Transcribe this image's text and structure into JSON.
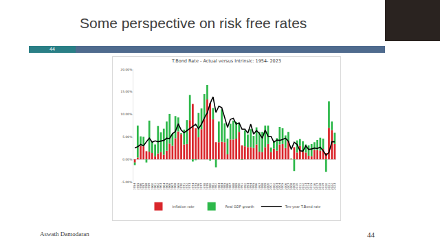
{
  "slide": {
    "title": "Some perspective on risk free rates",
    "number": "44",
    "footer": "Aswath Damodaran",
    "page": "44"
  },
  "chart_data": {
    "type": "bar",
    "title": "T.Bond Rate - Actual versus Intrinsic: 1954- 2023",
    "categories": [
      "1954",
      "1955",
      "1956",
      "1957",
      "1958",
      "1959",
      "1960",
      "1961",
      "1962",
      "1963",
      "1964",
      "1965",
      "1966",
      "1967",
      "1968",
      "1969",
      "1970",
      "1971",
      "1972",
      "1973",
      "1974",
      "1975",
      "1976",
      "1977",
      "1978",
      "1979",
      "1980",
      "1981",
      "1982",
      "1983",
      "1984",
      "1985",
      "1986",
      "1987",
      "1988",
      "1989",
      "1990",
      "1991",
      "1992",
      "1993",
      "1994",
      "1995",
      "1996",
      "1997",
      "1998",
      "1999",
      "2000",
      "2001",
      "2002",
      "2003",
      "2004",
      "2005",
      "2006",
      "2007",
      "2008",
      "2009",
      "2010",
      "2011",
      "2012",
      "2013",
      "2014",
      "2015",
      "2016",
      "2017",
      "2018",
      "2019",
      "2020",
      "2021",
      "2022",
      "2023"
    ],
    "series": [
      {
        "name": "Inflation rate",
        "color": "#d9262b",
        "values": [
          -0.7,
          0.4,
          3.0,
          2.9,
          1.8,
          1.7,
          1.4,
          0.7,
          1.3,
          1.6,
          1.0,
          1.9,
          3.5,
          3.0,
          4.7,
          6.2,
          5.6,
          3.3,
          3.4,
          8.7,
          12.3,
          6.9,
          4.9,
          6.7,
          9.0,
          13.3,
          12.5,
          8.9,
          3.8,
          3.8,
          3.9,
          3.8,
          1.1,
          4.4,
          4.4,
          4.6,
          6.1,
          3.1,
          2.9,
          2.7,
          2.7,
          2.5,
          3.3,
          1.7,
          1.6,
          2.7,
          3.4,
          1.6,
          2.4,
          1.9,
          3.3,
          3.4,
          2.5,
          4.1,
          0.1,
          2.7,
          1.5,
          3.0,
          1.7,
          1.5,
          0.8,
          0.7,
          2.1,
          2.1,
          1.9,
          2.3,
          1.4,
          7.0,
          6.5,
          3.4
        ]
      },
      {
        "name": "Real GDP growth",
        "color": "#2db84a",
        "values": [
          -0.6,
          7.1,
          2.1,
          2.1,
          -0.7,
          6.9,
          2.6,
          2.6,
          6.1,
          4.4,
          5.8,
          6.5,
          6.6,
          2.7,
          4.9,
          3.1,
          0.2,
          3.3,
          5.3,
          5.6,
          -0.5,
          -0.2,
          5.4,
          4.6,
          5.5,
          3.2,
          -0.3,
          2.5,
          -1.8,
          4.6,
          7.2,
          4.2,
          3.5,
          3.5,
          4.2,
          3.7,
          1.9,
          -0.1,
          3.5,
          2.8,
          4.0,
          2.7,
          3.8,
          4.4,
          4.5,
          4.8,
          4.1,
          1.0,
          1.7,
          2.8,
          3.9,
          3.5,
          2.8,
          2.0,
          0.1,
          -2.6,
          2.7,
          1.5,
          2.3,
          1.8,
          2.3,
          2.7,
          1.7,
          2.2,
          2.9,
          2.3,
          -2.8,
          5.9,
          1.9,
          2.5
        ]
      },
      {
        "name": "Ten-year T.Bond rate",
        "type": "line",
        "color": "#000000",
        "values": [
          2.5,
          2.8,
          3.3,
          3.0,
          3.9,
          4.7,
          3.8,
          4.1,
          3.9,
          4.1,
          4.2,
          4.7,
          4.6,
          5.7,
          6.2,
          7.9,
          6.5,
          5.9,
          6.4,
          6.9,
          7.4,
          7.8,
          6.8,
          7.8,
          9.2,
          10.3,
          12.4,
          13.9,
          10.4,
          11.8,
          11.5,
          9.3,
          7.1,
          8.9,
          9.1,
          7.8,
          8.1,
          6.7,
          6.7,
          5.8,
          7.8,
          5.6,
          6.4,
          5.7,
          4.7,
          6.5,
          5.1,
          5.1,
          3.8,
          4.3,
          4.2,
          4.4,
          4.7,
          4.0,
          2.2,
          3.8,
          3.3,
          1.9,
          1.8,
          3.0,
          2.2,
          2.3,
          2.5,
          2.4,
          2.7,
          1.9,
          0.9,
          1.5,
          3.9,
          3.9
        ]
      }
    ],
    "ylim": [
      -5,
      20
    ],
    "yticks": [
      {
        "value": -5,
        "label": "-5.00%"
      },
      {
        "value": 0,
        "label": "0.00%"
      },
      {
        "value": 5,
        "label": "5.00%"
      },
      {
        "value": 10,
        "label": "10.00%"
      },
      {
        "value": 15,
        "label": "15.00%"
      },
      {
        "value": 20,
        "label": "20.00%"
      }
    ],
    "stacked": true,
    "grid": false,
    "legend": "bottom"
  }
}
